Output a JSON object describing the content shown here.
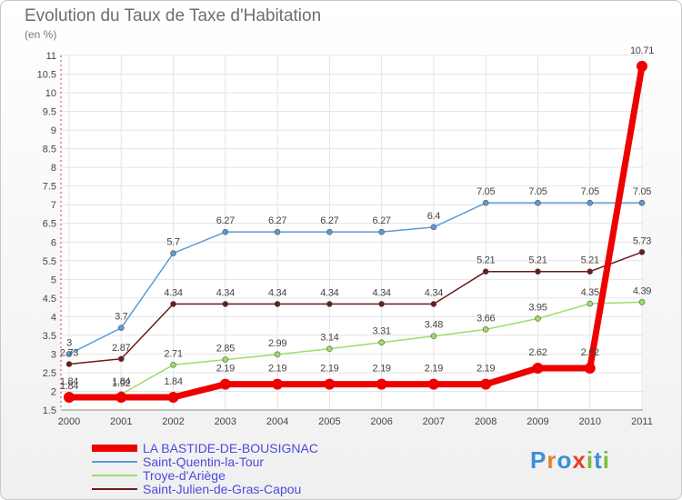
{
  "title": "Evolution du Taux de Taxe d'Habitation",
  "subtitle": "(en %)",
  "logo_text": "Proxiti",
  "logo_colors": [
    "#3a8fd8",
    "#e8822a",
    "#3a8fd8",
    "#e8402a",
    "#7bbf3a",
    "#3a8fd8",
    "#7bbf3a"
  ],
  "chart_data": {
    "type": "line",
    "x": [
      "2000",
      "2001",
      "2002",
      "2003",
      "2004",
      "2005",
      "2006",
      "2007",
      "2008",
      "2009",
      "2010",
      "2011"
    ],
    "ylim": [
      1.5,
      11
    ],
    "yticks": [
      "1.5",
      "2",
      "2.5",
      "3",
      "3.5",
      "4",
      "4.5",
      "5",
      "5.5",
      "6",
      "6.5",
      "7",
      "7.5",
      "8",
      "8.5",
      "9",
      "9.5",
      "10",
      "10.5",
      "11"
    ],
    "grid": true,
    "legend_position": "bottom-left",
    "series": [
      {
        "name": "Saint-Quentin-la-Tour",
        "color": "#5b9bd5",
        "values": [
          3,
          3.7,
          5.7,
          6.27,
          6.27,
          6.27,
          6.27,
          6.4,
          7.05,
          7.05,
          7.05,
          7.05
        ],
        "labels": [
          "3",
          "3.7",
          "5.7",
          "6.27",
          "6.27",
          "6.27",
          "6.27",
          "6.4",
          "7.05",
          "7.05",
          "7.05",
          "7.05"
        ]
      },
      {
        "name": "Saint-Julien-de-Gras-Capou",
        "color": "#6b1a1a",
        "values": [
          2.73,
          2.87,
          4.34,
          4.34,
          4.34,
          4.34,
          4.34,
          4.34,
          5.21,
          5.21,
          5.21,
          5.73
        ],
        "labels": [
          "2.73",
          "2.87",
          "4.34",
          "4.34",
          "4.34",
          "4.34",
          "4.34",
          "4.34",
          "5.21",
          "5.21",
          "5.21",
          "5.73"
        ]
      },
      {
        "name": "Troye-d'Ariège",
        "color": "#9ade6a",
        "values": [
          1.84,
          1.92,
          2.71,
          2.85,
          2.99,
          3.14,
          3.31,
          3.48,
          3.66,
          3.95,
          4.35,
          4.39
        ],
        "labels": [
          "1.84",
          "1.92",
          "2.71",
          "2.85",
          "2.99",
          "3.14",
          "3.31",
          "3.48",
          "3.66",
          "3.95",
          "4.35",
          "4.39"
        ]
      },
      {
        "name": "LA BASTIDE-DE-BOUSIGNAC",
        "color": "#ee0000",
        "values": [
          1.84,
          1.84,
          1.84,
          2.19,
          2.19,
          2.19,
          2.19,
          2.19,
          2.19,
          2.62,
          2.62,
          10.71
        ],
        "labels": [
          "1.84",
          "1.84",
          "1.84",
          "2.19",
          "2.19",
          "2.19",
          "2.19",
          "2.19",
          "2.19",
          "2.62",
          "2.62",
          "10.71"
        ]
      }
    ],
    "legend_order": [
      3,
      0,
      2,
      1
    ]
  }
}
